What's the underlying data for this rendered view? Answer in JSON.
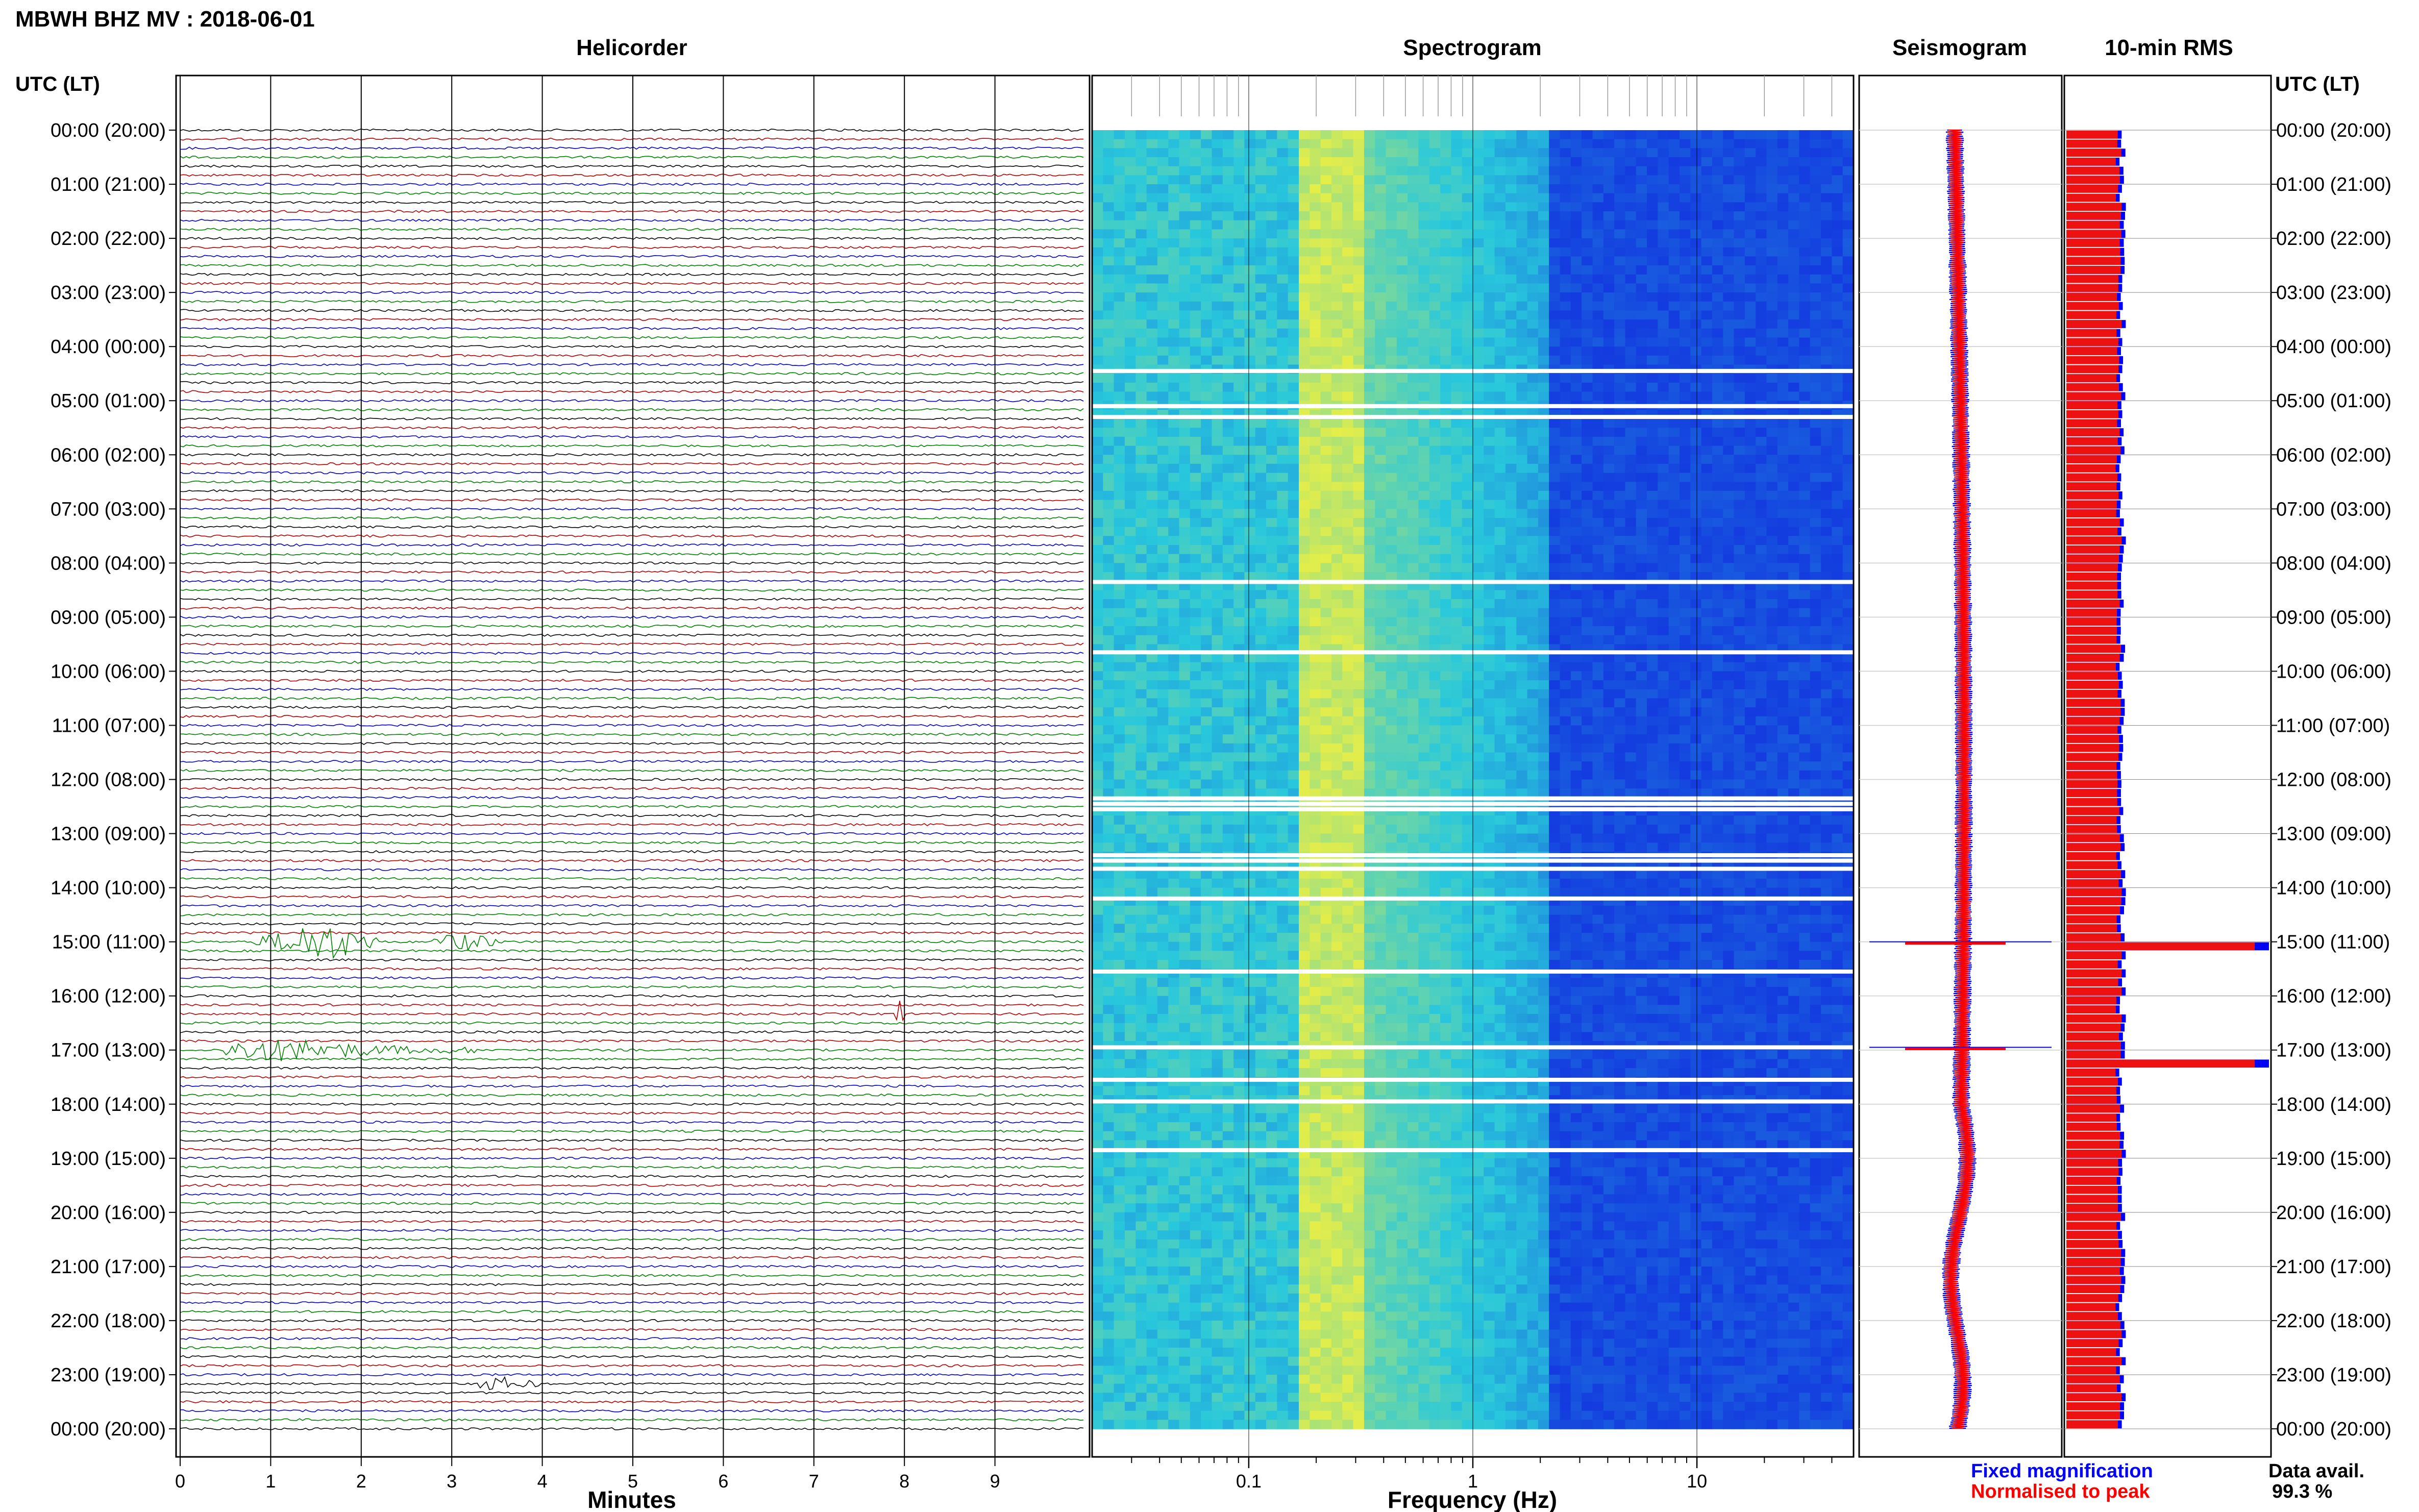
{
  "header": {
    "station_title": "MBWH BHZ MV : 2018-06-01",
    "left_axis_title": "UTC (LT)",
    "right_axis_title": "UTC (LT)"
  },
  "panels": {
    "helicorder": {
      "title": "Helicorder",
      "xlabel": "Minutes"
    },
    "spectrogram": {
      "title": "Spectrogram",
      "xlabel": "Frequency (Hz)"
    },
    "seismogram": {
      "title": "Seismogram"
    },
    "rms": {
      "title": "10-min RMS"
    }
  },
  "legend": {
    "fixed": "Fixed magnification",
    "normalised": "Normalised to peak",
    "fixed_color": "#0000ff",
    "normalised_color": "#ff0000"
  },
  "availability": {
    "label": "Data avail.",
    "value": "99.3 %"
  },
  "colors": {
    "trace_cycle": [
      "#000000",
      "#b00000",
      "#0000c0",
      "#008000"
    ],
    "spectrogram_low": "#1020e0",
    "spectrogram_high": "#f0f040"
  },
  "chart_data": [
    {
      "type": "line",
      "title": "Helicorder",
      "xlabel": "Minutes",
      "ylabel": "UTC (LT)",
      "x_ticks": [
        "0",
        "1",
        "2",
        "3",
        "4",
        "5",
        "6",
        "7",
        "8",
        "9"
      ],
      "xlim": [
        0,
        10
      ],
      "y_ticks": [
        "00:00 (20:00)",
        "01:00 (21:00)",
        "02:00 (22:00)",
        "03:00 (23:00)",
        "04:00 (00:00)",
        "05:00 (01:00)",
        "06:00 (02:00)",
        "07:00 (03:00)",
        "08:00 (04:00)",
        "09:00 (05:00)",
        "10:00 (06:00)",
        "11:00 (07:00)",
        "12:00 (08:00)",
        "13:00 (09:00)",
        "14:00 (10:00)",
        "15:00 (11:00)",
        "16:00 (12:00)",
        "17:00 (13:00)",
        "18:00 (14:00)",
        "19:00 (15:00)",
        "20:00 (16:00)",
        "21:00 (17:00)",
        "22:00 (18:00)",
        "23:00 (19:00)",
        "00:00 (20:00)"
      ],
      "traces_per_hour": 6,
      "events": [
        {
          "hour": 15.0,
          "start_min": 0.8,
          "end_min": 2.2,
          "peak_min": 1.55,
          "amplitude": 8,
          "color": "#008000"
        },
        {
          "hour": 15.0,
          "start_min": 2.8,
          "end_min": 3.6,
          "peak_min": 3.1,
          "amplitude": 3,
          "color": "#008000"
        },
        {
          "hour": 16.95,
          "start_min": 0.5,
          "end_min": 3.3,
          "peak_min": 1.1,
          "amplitude": 4,
          "color": "#008000"
        },
        {
          "hour": 23.15,
          "start_min": 3.3,
          "end_min": 4.0,
          "peak_min": 3.5,
          "amplitude": 2,
          "color": "#000000"
        },
        {
          "hour": 16.4,
          "start_min": 7.9,
          "end_min": 8.0,
          "peak_min": 7.95,
          "amplitude": 8,
          "color": "#b00000"
        }
      ]
    },
    {
      "type": "heatmap",
      "title": "Spectrogram",
      "xlabel": "Frequency (Hz)",
      "x_scale": "log",
      "x_ticks": [
        "0.1",
        "1",
        "10"
      ],
      "xlim": [
        0.02,
        50
      ],
      "ylim_hours": [
        0,
        24
      ],
      "dominant_band_hz": [
        0.15,
        0.3
      ],
      "gaps_hours": [
        4.45,
        5.1,
        5.3,
        8.35,
        9.65,
        12.35,
        12.45,
        12.55,
        13.4,
        13.5,
        13.65,
        14.2,
        15.55,
        16.95,
        17.55,
        17.95,
        18.85
      ]
    },
    {
      "type": "line",
      "title": "Seismogram",
      "series": [
        {
          "name": "Fixed magnification",
          "color": "#0000ff"
        },
        {
          "name": "Normalised to peak",
          "color": "#ff0000"
        }
      ],
      "spikes_hours": [
        15.0,
        16.95
      ]
    },
    {
      "type": "bar",
      "title": "10-min RMS",
      "bins_per_hour": 6,
      "typical_relative_value": 0.28,
      "peaks": [
        {
          "hour": 15.05,
          "relative_value": 1.0
        },
        {
          "hour": 17.1,
          "relative_value": 1.0
        }
      ]
    }
  ]
}
